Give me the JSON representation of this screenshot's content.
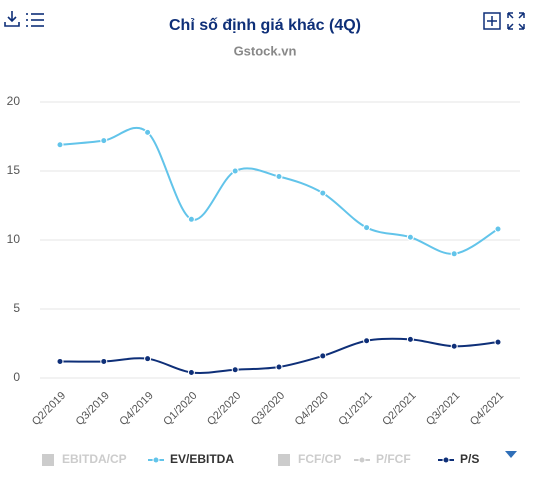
{
  "chart_data": {
    "type": "line",
    "title": "Chỉ số định giá khác (4Q)",
    "subtitle": "Gstock.vn",
    "categories": [
      "Q2/2019",
      "Q3/2019",
      "Q4/2019",
      "Q1/2020",
      "Q2/2020",
      "Q3/2020",
      "Q4/2020",
      "Q1/2021",
      "Q2/2021",
      "Q3/2021",
      "Q4/2021"
    ],
    "series": [
      {
        "name": "EV/EBITDA",
        "color": "#62c4ea",
        "values": [
          16.9,
          17.2,
          17.8,
          11.5,
          15.0,
          14.6,
          13.4,
          10.9,
          10.2,
          9.0,
          10.8
        ]
      },
      {
        "name": "P/S",
        "color": "#0e2f78",
        "values": [
          1.2,
          1.2,
          1.4,
          0.4,
          0.6,
          0.8,
          1.6,
          2.7,
          2.8,
          2.3,
          2.6
        ]
      }
    ],
    "inactive_legend": [
      {
        "name": "EBITDA/CP",
        "marker": "square",
        "color": "#cccccc"
      },
      {
        "name": "FCF/CP",
        "marker": "square",
        "color": "#cccccc"
      },
      {
        "name": "P/FCF",
        "marker": "line",
        "color": "#cccccc"
      }
    ],
    "ylim": [
      0,
      20
    ],
    "yticks": [
      0,
      5,
      10,
      15,
      20
    ],
    "grid": true
  }
}
